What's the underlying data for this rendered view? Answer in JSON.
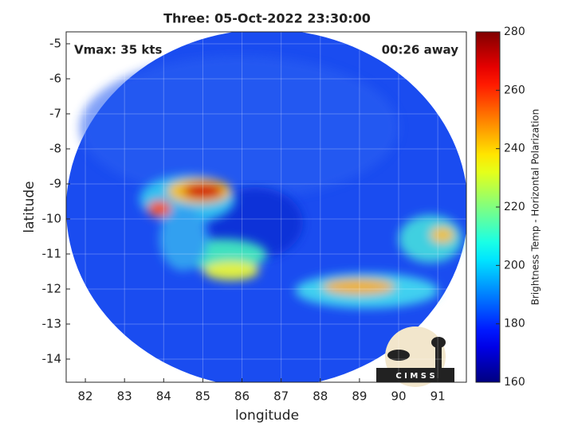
{
  "chart_data": {
    "type": "heatmap",
    "title": "Three: 05-Oct-2022 23:30:00",
    "x_label": "longitude",
    "y_label": "latitude",
    "annotations": [
      "Vmax: 35 kts",
      "00:26 away"
    ],
    "logo_text": "C I M S S",
    "xlim": [
      81.51,
      91.73
    ],
    "xticks": [
      82,
      83,
      84,
      85,
      86,
      87,
      88,
      89,
      90,
      91
    ],
    "ylim": [
      -14.66,
      -4.66
    ],
    "yticks": [
      -5,
      -6,
      -7,
      -8,
      -9,
      -10,
      -11,
      -12,
      -13,
      -14
    ],
    "grid": true,
    "colormap": "jet",
    "colorbar_label": "Brightness Temp - Horizontal Polarization",
    "clim": [
      160,
      280
    ],
    "cticks": [
      160,
      180,
      200,
      220,
      240,
      260,
      280
    ]
  }
}
